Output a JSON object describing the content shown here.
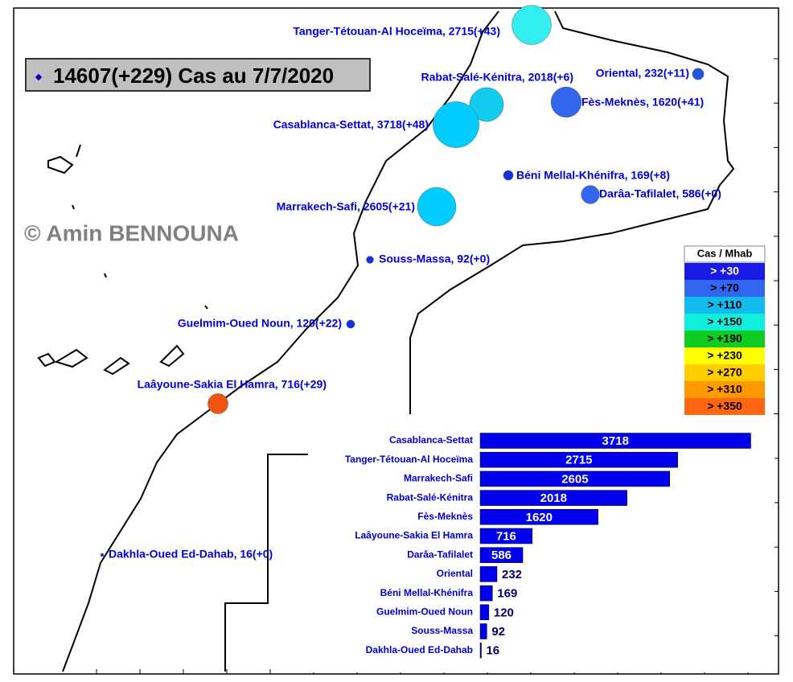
{
  "title": "14607(+229) Cas au 7/7/2020",
  "watermark": "© Amin BENNOUNA",
  "map": {
    "regions": [
      {
        "label": "Tanger-Tétouan-Al Hoceïma, 2715(+43)",
        "cases": 2715,
        "color": "#33eeee"
      },
      {
        "label": "Rabat-Salé-Kénitra, 2018(+6)",
        "cases": 2018,
        "color": "#11ccee"
      },
      {
        "label": "Oriental, 232(+11)",
        "cases": 232,
        "color": "#2255dd"
      },
      {
        "label": "Fès-Meknès, 1620(+41)",
        "cases": 1620,
        "color": "#3366ee"
      },
      {
        "label": "Casablanca-Settat, 3718(+48)",
        "cases": 3718,
        "color": "#00ccff"
      },
      {
        "label": "Béni Mellal-Khénifra, 169(+8)",
        "cases": 169,
        "color": "#1133dd"
      },
      {
        "label": "Darâa-Tafilalet, 586(+0)",
        "cases": 586,
        "color": "#3366ee"
      },
      {
        "label": "Marrakech-Safi, 2605(+21)",
        "cases": 2605,
        "color": "#00ccff"
      },
      {
        "label": "Souss-Massa, 92(+0)",
        "cases": 92,
        "color": "#1133dd"
      },
      {
        "label": "Guelmim-Oued Noun, 120(+22)",
        "cases": 120,
        "color": "#1133dd"
      },
      {
        "label": "Laâyoune-Sakia El Hamra, 716(+29)",
        "cases": 716,
        "color": "#ee5511"
      },
      {
        "label": "Dakhla-Oued Ed-Dahab, 16(+0)",
        "cases": 16,
        "color": "#1133dd"
      }
    ]
  },
  "legend": {
    "title": "Cas / Mhab",
    "items": [
      {
        "label": "> +30",
        "color": "#1a1ae6"
      },
      {
        "label": "> +70",
        "color": "#3366ee"
      },
      {
        "label": "> +110",
        "color": "#11bbee"
      },
      {
        "label": "> +150",
        "color": "#11eedd"
      },
      {
        "label": "> +190",
        "color": "#11cc22"
      },
      {
        "label": "> +230",
        "color": "#ffff00"
      },
      {
        "label": "> +270",
        "color": "#ffcc00"
      },
      {
        "label": "> +310",
        "color": "#ff9900"
      },
      {
        "label": "> +350",
        "color": "#ff6611"
      }
    ]
  },
  "chart_data": {
    "type": "bar",
    "orientation": "horizontal",
    "categories": [
      "Casablanca-Settat",
      "Tanger-Tétouan-Al Hoceïma",
      "Marrakech-Safi",
      "Rabat-Salé-Kénitra",
      "Fès-Meknès",
      "Laâyoune-Sakia El Hamra",
      "Darâa-Tafilalet",
      "Oriental",
      "Béni Mellal-Khénifra",
      "Guelmim-Oued Noun",
      "Souss-Massa",
      "Dakhla-Oued Ed-Dahab"
    ],
    "values": [
      3718,
      2715,
      2605,
      2018,
      1620,
      716,
      586,
      232,
      169,
      120,
      92,
      16
    ],
    "color": "#0000ee",
    "xlim": [
      0,
      4000
    ]
  }
}
